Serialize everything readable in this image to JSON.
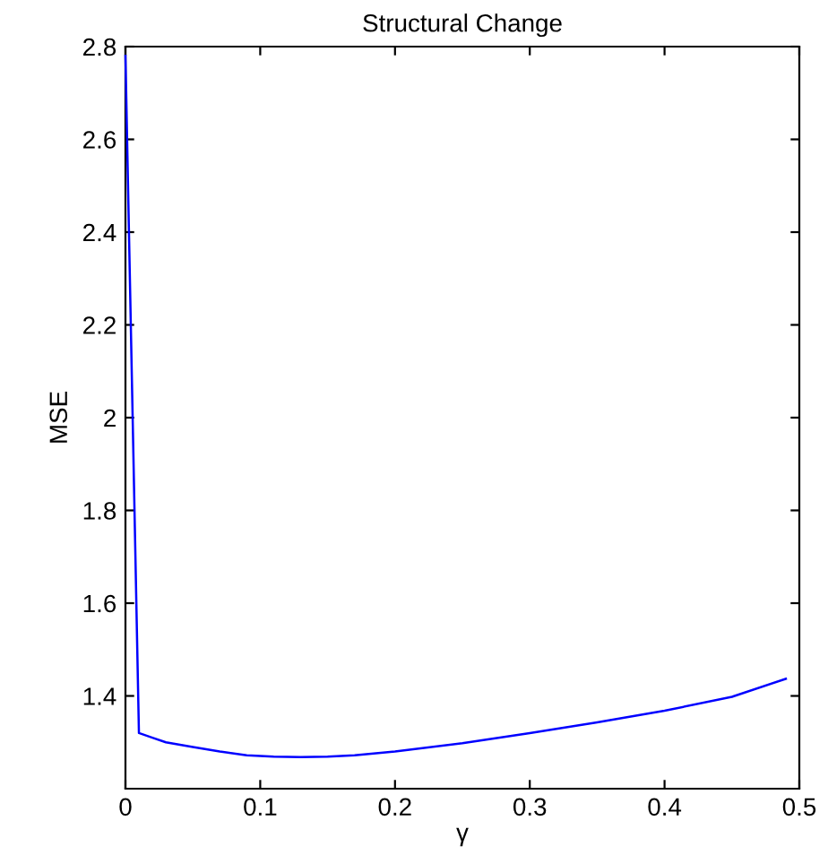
{
  "chart_data": {
    "type": "line",
    "title": "Structural Change",
    "xlabel": "γ",
    "ylabel": "MSE",
    "x": [
      0,
      0.01,
      0.02,
      0.03,
      0.05,
      0.07,
      0.09,
      0.11,
      0.13,
      0.15,
      0.17,
      0.2,
      0.25,
      0.3,
      0.35,
      0.4,
      0.45,
      0.49
    ],
    "series": [
      {
        "color": "#0000ff",
        "values": [
          2.78,
          1.32,
          1.31,
          1.3,
          1.29,
          1.28,
          1.272,
          1.269,
          1.268,
          1.269,
          1.272,
          1.28,
          1.298,
          1.32,
          1.343,
          1.368,
          1.398,
          1.437
        ]
      }
    ],
    "xlim": [
      0,
      0.5
    ],
    "xticks": [
      0,
      0.1,
      0.2,
      0.3,
      0.4,
      0.5
    ],
    "ylim": [
      1.2,
      2.8
    ],
    "yticks": [
      1.4,
      1.6,
      1.8,
      2,
      2.2,
      2.4,
      2.6,
      2.8
    ],
    "grid": false,
    "legend": false,
    "marker": "none",
    "line_style": "solid"
  }
}
